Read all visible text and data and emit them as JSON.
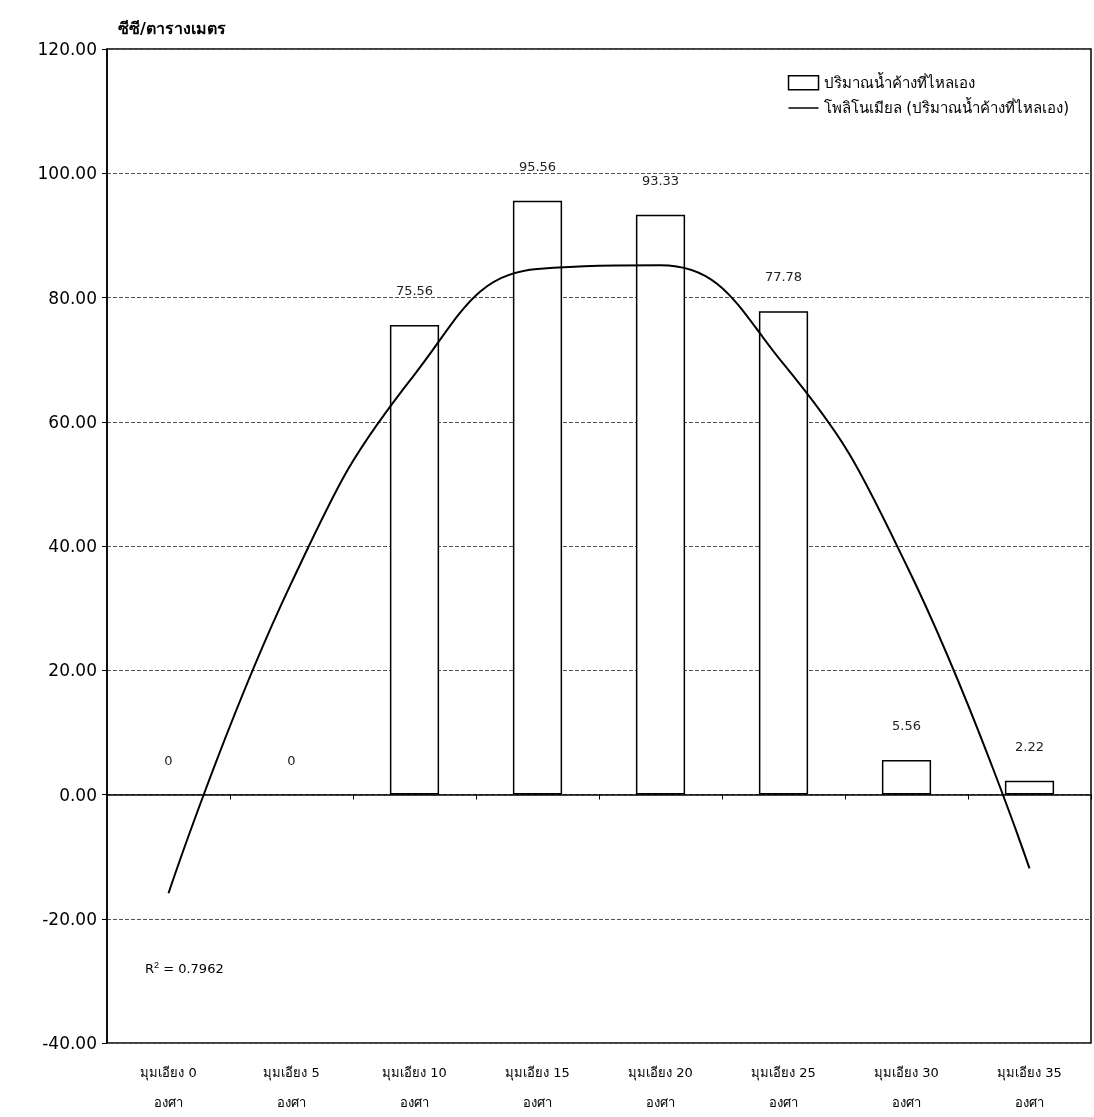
{
  "chart_data": {
    "type": "bar",
    "ylabel": "ซีซี/ตารางเมตร",
    "categories": [
      "มุมเอียง 0\nองศา",
      "มุมเอียง 5\nองศา",
      "มุมเอียง 10\nองศา",
      "มุมเอียง 15\nองศา",
      "มุมเอียง 20\nองศา",
      "มุมเอียง 25\nองศา",
      "มุมเอียง 30\nองศา",
      "มุมเอียง 35\nองศา"
    ],
    "series": [
      {
        "name": "ปริมาณน้ำค้างที่ไหลเอง",
        "color": "#ffffff",
        "values": [
          0,
          0,
          75.56,
          95.56,
          93.33,
          77.78,
          5.56,
          2.22
        ],
        "value_labels": [
          "0",
          "0",
          "75.56",
          "95.56",
          "93.33",
          "77.78",
          "5.56",
          "2.22"
        ]
      },
      {
        "name": "โพลิโนเมียล (ปริมาณน้ำค้างที่ไหลเอง)",
        "type": "line",
        "color": "#000000",
        "marker": "none",
        "x": [
          "มุมเอียง 0\nองศา",
          "มุมเอียง 5\nองศา",
          "มุมเอียง 10\nองศา",
          "มุมเอียง 15\nองศา",
          "มุมเอียง 20\nองศา",
          "มุมเอียง 25\nองศา",
          "มุมเอียง 30\nองศา",
          "มุมเอียง 35\nองศา"
        ],
        "values": [
          -15.9,
          34.1,
          67.6,
          84.6,
          85.2,
          69.3,
          36.9,
          -11.9
        ]
      }
    ],
    "ylim": [
      -40,
      120
    ],
    "yticks": [
      {
        "value": -40,
        "label": "-40.00"
      },
      {
        "value": -20,
        "label": "-20.00"
      },
      {
        "value": 0,
        "label": "0.00"
      },
      {
        "value": 20,
        "label": "20.00"
      },
      {
        "value": 40,
        "label": "40.00"
      },
      {
        "value": 60,
        "label": "60.00"
      },
      {
        "value": 80,
        "label": "80.00"
      },
      {
        "value": 100,
        "label": "100.00"
      },
      {
        "value": 120,
        "label": "120.00"
      }
    ],
    "grid": "y",
    "legend": "top right",
    "annotations": [
      "R$^{2}$ = 0.7962"
    ]
  }
}
